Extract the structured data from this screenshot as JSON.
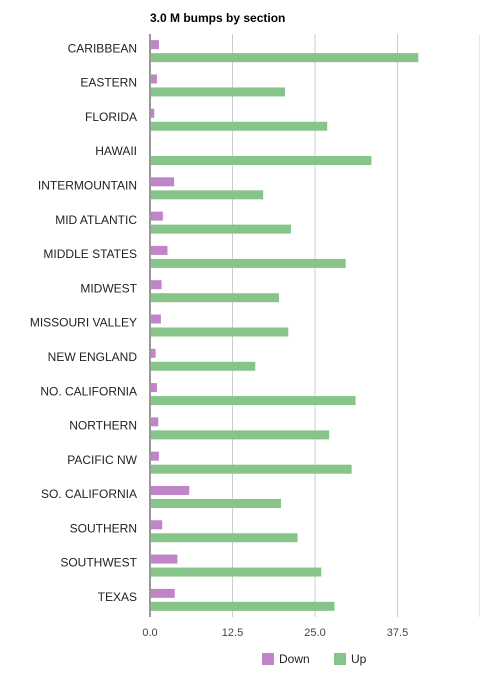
{
  "chart_data": {
    "type": "bar",
    "orientation": "horizontal",
    "title": "3.0 M bumps by section",
    "categories": [
      "CARIBBEAN",
      "EASTERN",
      "FLORIDA",
      "HAWAII",
      "INTERMOUNTAIN",
      "MID ATLANTIC",
      "MIDDLE STATES",
      "MIDWEST",
      "MISSOURI VALLEY",
      "NEW ENGLAND",
      "NO. CALIFORNIA",
      "NORTHERN",
      "PACIFIC NW",
      "SO. CALIFORNIA",
      "SOUTHERN",
      "SOUTHWEST",
      "TEXAS"
    ],
    "series": [
      {
        "name": "Down",
        "color": "#c084c8",
        "values": [
          1.2,
          0.9,
          0.5,
          0,
          3.5,
          1.8,
          2.5,
          1.6,
          1.5,
          0.7,
          0.9,
          1.1,
          1.2,
          5.8,
          1.7,
          4.0,
          3.6
        ]
      },
      {
        "name": "Up",
        "color": "#86c489",
        "values": [
          40.5,
          20.3,
          26.7,
          33.4,
          17.0,
          21.2,
          29.5,
          19.4,
          20.8,
          15.8,
          31.0,
          27.0,
          30.4,
          19.7,
          22.2,
          25.8,
          27.8
        ]
      }
    ],
    "x_ticks": [
      "0.0",
      "12.5",
      "25.0",
      "37.5"
    ],
    "xlim": [
      0,
      50
    ],
    "grid": true,
    "legend_position": "bottom"
  }
}
